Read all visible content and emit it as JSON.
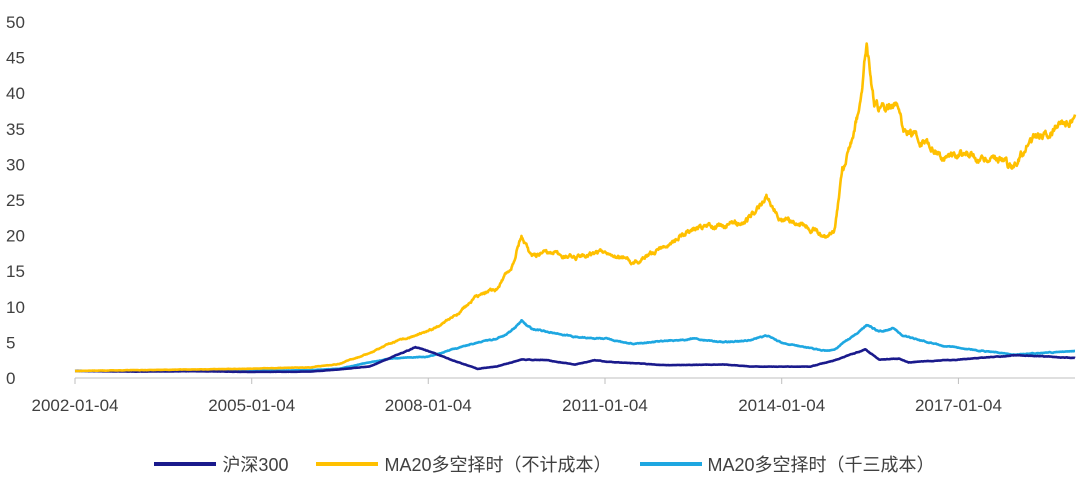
{
  "chart_data": {
    "type": "line",
    "title": "",
    "xlabel": "",
    "ylabel": "",
    "ylim": [
      0,
      50
    ],
    "xlim": [
      "2002-01-04",
      "2018-12-28"
    ],
    "y_ticks": [
      "0",
      "5",
      "10",
      "15",
      "20",
      "25",
      "30",
      "35",
      "40",
      "45",
      "50"
    ],
    "x_ticks": [
      "2002-01-04",
      "2005-01-04",
      "2008-01-04",
      "2011-01-04",
      "2014-01-04",
      "2017-01-04"
    ],
    "grid": false,
    "legend_position": "bottom",
    "series": [
      {
        "name": "沪深300",
        "color": "#1a1a8c",
        "points": [
          [
            "2002-01-04",
            1.0
          ],
          [
            "2003-01-04",
            0.9
          ],
          [
            "2004-01-04",
            0.95
          ],
          [
            "2005-01-04",
            0.85
          ],
          [
            "2006-01-04",
            0.9
          ],
          [
            "2006-07-01",
            1.2
          ],
          [
            "2007-01-04",
            1.6
          ],
          [
            "2007-06-01",
            3.0
          ],
          [
            "2007-10-16",
            4.3
          ],
          [
            "2008-01-04",
            3.8
          ],
          [
            "2008-06-01",
            2.5
          ],
          [
            "2008-11-04",
            1.3
          ],
          [
            "2009-03-01",
            1.6
          ],
          [
            "2009-08-04",
            2.6
          ],
          [
            "2010-01-04",
            2.5
          ],
          [
            "2010-07-01",
            1.9
          ],
          [
            "2010-11-01",
            2.5
          ],
          [
            "2011-01-04",
            2.3
          ],
          [
            "2011-07-01",
            2.1
          ],
          [
            "2012-01-04",
            1.8
          ],
          [
            "2013-01-04",
            1.9
          ],
          [
            "2013-07-01",
            1.6
          ],
          [
            "2014-01-04",
            1.6
          ],
          [
            "2014-07-01",
            1.6
          ],
          [
            "2014-12-01",
            2.5
          ],
          [
            "2015-06-08",
            4.0
          ],
          [
            "2015-09-01",
            2.6
          ],
          [
            "2016-01-04",
            2.7
          ],
          [
            "2016-03-01",
            2.2
          ],
          [
            "2017-01-04",
            2.6
          ],
          [
            "2018-01-04",
            3.2
          ],
          [
            "2018-12-28",
            2.8
          ]
        ]
      },
      {
        "name": "MA20多空择时（不计成本）",
        "color": "#ffc000",
        "points": [
          [
            "2002-01-04",
            1.0
          ],
          [
            "2003-01-04",
            1.1
          ],
          [
            "2004-01-04",
            1.2
          ],
          [
            "2005-01-04",
            1.3
          ],
          [
            "2006-01-04",
            1.5
          ],
          [
            "2006-07-01",
            2.0
          ],
          [
            "2007-01-04",
            3.5
          ],
          [
            "2007-06-01",
            5.0
          ],
          [
            "2008-01-04",
            6.5
          ],
          [
            "2008-07-01",
            9.0
          ],
          [
            "2008-11-04",
            11.5
          ],
          [
            "2009-03-01",
            12.5
          ],
          [
            "2009-06-01",
            15.5
          ],
          [
            "2009-08-04",
            20.0
          ],
          [
            "2009-10-01",
            17.0
          ],
          [
            "2010-01-04",
            17.5
          ],
          [
            "2010-07-01",
            17.0
          ],
          [
            "2011-01-04",
            18.0
          ],
          [
            "2011-07-01",
            16.0
          ],
          [
            "2012-01-04",
            18.5
          ],
          [
            "2012-07-01",
            21.0
          ],
          [
            "2013-01-04",
            21.5
          ],
          [
            "2013-06-01",
            22.0
          ],
          [
            "2013-10-01",
            25.5
          ],
          [
            "2014-01-04",
            22.5
          ],
          [
            "2014-06-01",
            21.5
          ],
          [
            "2014-10-01",
            20.0
          ],
          [
            "2014-12-01",
            21.0
          ],
          [
            "2015-01-15",
            29.0
          ],
          [
            "2015-03-01",
            32.0
          ],
          [
            "2015-05-01",
            38.0
          ],
          [
            "2015-06-15",
            47.0
          ],
          [
            "2015-08-01",
            38.0
          ],
          [
            "2015-10-01",
            37.5
          ],
          [
            "2015-12-01",
            39.0
          ],
          [
            "2016-02-01",
            35.0
          ],
          [
            "2016-06-01",
            33.0
          ],
          [
            "2016-10-01",
            31.0
          ],
          [
            "2017-01-04",
            31.5
          ],
          [
            "2017-06-01",
            30.5
          ],
          [
            "2017-09-01",
            31.0
          ],
          [
            "2017-12-01",
            29.5
          ],
          [
            "2018-03-01",
            32.5
          ],
          [
            "2018-08-01",
            35.0
          ],
          [
            "2018-12-28",
            37.0
          ]
        ]
      },
      {
        "name": "MA20多空择时（千三成本）",
        "color": "#1ea7e1",
        "points": [
          [
            "2002-01-04",
            1.0
          ],
          [
            "2003-01-04",
            1.0
          ],
          [
            "2004-01-04",
            1.05
          ],
          [
            "2005-01-04",
            1.0
          ],
          [
            "2006-01-04",
            1.1
          ],
          [
            "2006-07-01",
            1.3
          ],
          [
            "2007-01-04",
            2.2
          ],
          [
            "2007-06-01",
            2.8
          ],
          [
            "2008-01-04",
            3.0
          ],
          [
            "2008-07-01",
            4.2
          ],
          [
            "2008-11-04",
            5.0
          ],
          [
            "2009-03-01",
            5.5
          ],
          [
            "2009-06-01",
            6.5
          ],
          [
            "2009-08-04",
            8.0
          ],
          [
            "2009-10-01",
            7.0
          ],
          [
            "2010-01-04",
            6.5
          ],
          [
            "2010-07-01",
            5.8
          ],
          [
            "2011-01-04",
            5.5
          ],
          [
            "2011-07-01",
            4.8
          ],
          [
            "2012-01-04",
            5.2
          ],
          [
            "2012-07-01",
            5.5
          ],
          [
            "2013-01-04",
            5.0
          ],
          [
            "2013-06-01",
            5.3
          ],
          [
            "2013-10-01",
            6.0
          ],
          [
            "2014-01-04",
            5.0
          ],
          [
            "2014-06-01",
            4.3
          ],
          [
            "2014-10-01",
            3.8
          ],
          [
            "2014-12-01",
            4.0
          ],
          [
            "2015-02-01",
            5.2
          ],
          [
            "2015-04-01",
            6.0
          ],
          [
            "2015-06-15",
            7.5
          ],
          [
            "2015-09-01",
            6.5
          ],
          [
            "2015-12-01",
            7.0
          ],
          [
            "2016-02-01",
            5.8
          ],
          [
            "2016-06-01",
            5.2
          ],
          [
            "2016-10-01",
            4.5
          ],
          [
            "2017-01-04",
            4.3
          ],
          [
            "2017-06-01",
            3.8
          ],
          [
            "2017-12-01",
            3.3
          ],
          [
            "2018-06-01",
            3.5
          ],
          [
            "2018-12-28",
            3.8
          ]
        ]
      }
    ]
  }
}
